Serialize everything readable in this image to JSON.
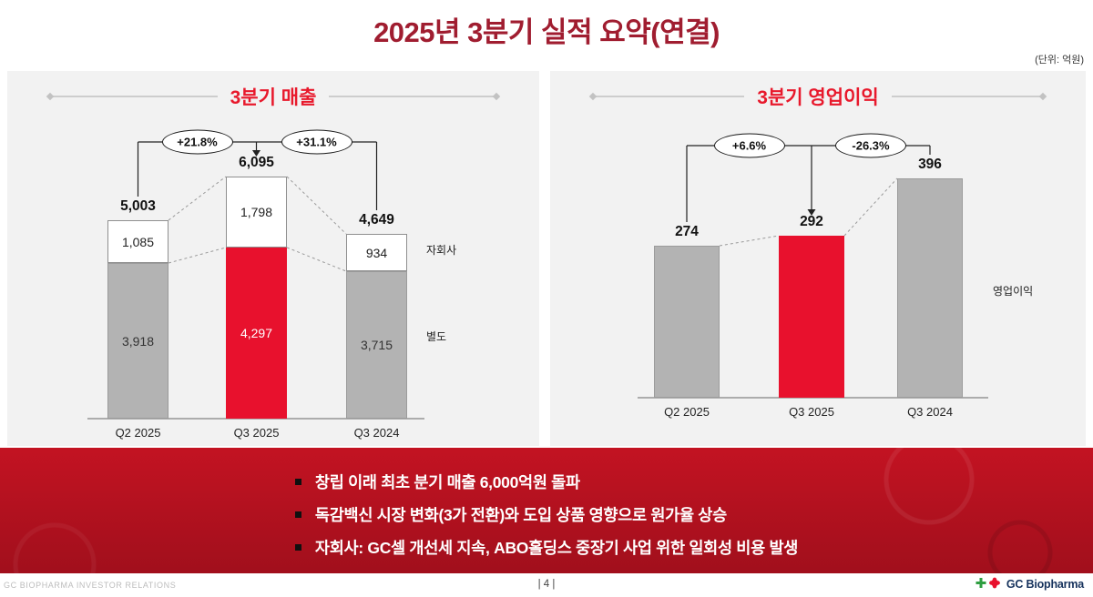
{
  "slide": {
    "title": "2025년 3분기 실적 요약(연결)",
    "unit_note": "(단위: 억원)"
  },
  "chart_data": [
    {
      "type": "bar",
      "stacked": true,
      "title": "3분기 매출",
      "categories": [
        "Q2 2025",
        "Q3 2025",
        "Q3 2024"
      ],
      "series": [
        {
          "name": "별도",
          "values": [
            3918,
            4297,
            3715
          ]
        },
        {
          "name": "자회사",
          "values": [
            1085,
            1798,
            934
          ]
        }
      ],
      "totals": [
        5003,
        6095,
        4649
      ],
      "highlight_index": 1,
      "annotations": [
        {
          "label": "+21.8%",
          "from": 0,
          "to": 1
        },
        {
          "label": "+31.1%",
          "from": 1,
          "to": 2
        }
      ],
      "side_labels": [
        {
          "text": "자회사"
        },
        {
          "text": "별도"
        }
      ],
      "colors": {
        "base": "#b3b3b3",
        "highlight": "#e8112d",
        "top": "#ffffff"
      },
      "ylim": [
        0,
        6095
      ]
    },
    {
      "type": "bar",
      "stacked": false,
      "title": "3분기 영업이익",
      "categories": [
        "Q2 2025",
        "Q3 2025",
        "Q3 2024"
      ],
      "values": [
        274,
        292,
        396
      ],
      "highlight_index": 1,
      "annotations": [
        {
          "label": "+6.6%",
          "from": 0,
          "to": 1
        },
        {
          "label": "-26.3%",
          "from": 1,
          "to": 2
        }
      ],
      "side_labels": [
        {
          "text": "영업이익"
        }
      ],
      "colors": {
        "base": "#b3b3b3",
        "highlight": "#e8112d"
      },
      "ylim": [
        0,
        436
      ]
    }
  ],
  "highlights": {
    "bullets": [
      "창립 이래 최초 분기 매출 6,000억원 돌파",
      "독감백신 시장 변화(3가 전환)와 도입 상품 영향으로 원가율 상승",
      "자회사: GC셀 개선세 지속, ABO홀딩스 중장기 사업 위한 일회성 비용 발생"
    ]
  },
  "footer": {
    "left": "GC BIOPHARMA INVESTOR RELATIONS",
    "page": "| 4 |",
    "brand": "GC Biopharma"
  }
}
